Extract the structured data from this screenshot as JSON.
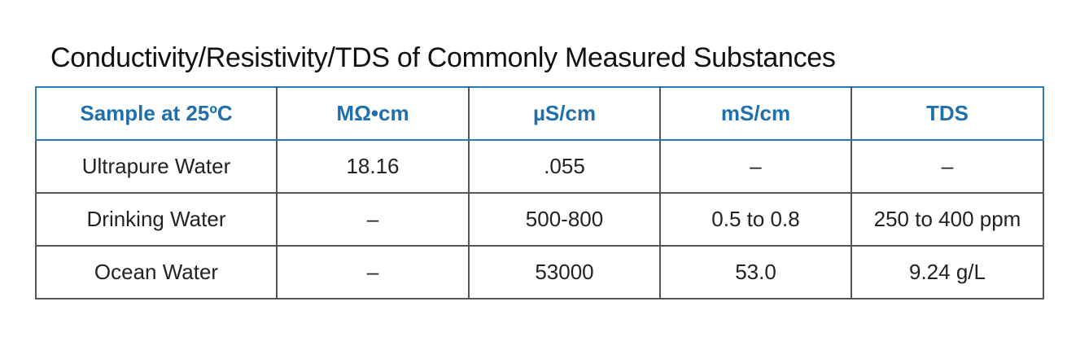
{
  "title": "Conductivity/Resistivity/TDS of Commonly Measured Substances",
  "table": {
    "header": [
      "Sample at 25ºC",
      "MΩ•cm",
      "µS/cm",
      "mS/cm",
      "TDS"
    ],
    "rows": [
      [
        "Ultrapure Water",
        "18.16",
        ".055",
        "–",
        "–"
      ],
      [
        "Drinking Water",
        "–",
        "500-800",
        "0.5 to 0.8",
        "250 to 400 ppm"
      ],
      [
        "Ocean Water",
        "–",
        "53000",
        "53.0",
        "9.24 g/L"
      ]
    ]
  }
}
